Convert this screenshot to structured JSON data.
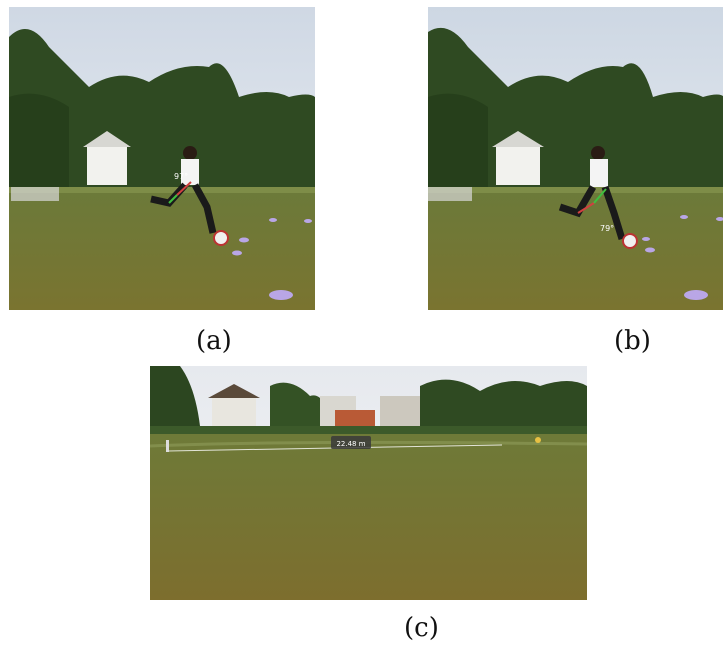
{
  "figures": [
    {
      "id": "a",
      "caption": "(a)",
      "annotation": "97°"
    },
    {
      "id": "b",
      "caption": "(b)",
      "annotation": "79°"
    },
    {
      "id": "c",
      "caption": "(c)",
      "annotation": "22.48 m"
    }
  ]
}
